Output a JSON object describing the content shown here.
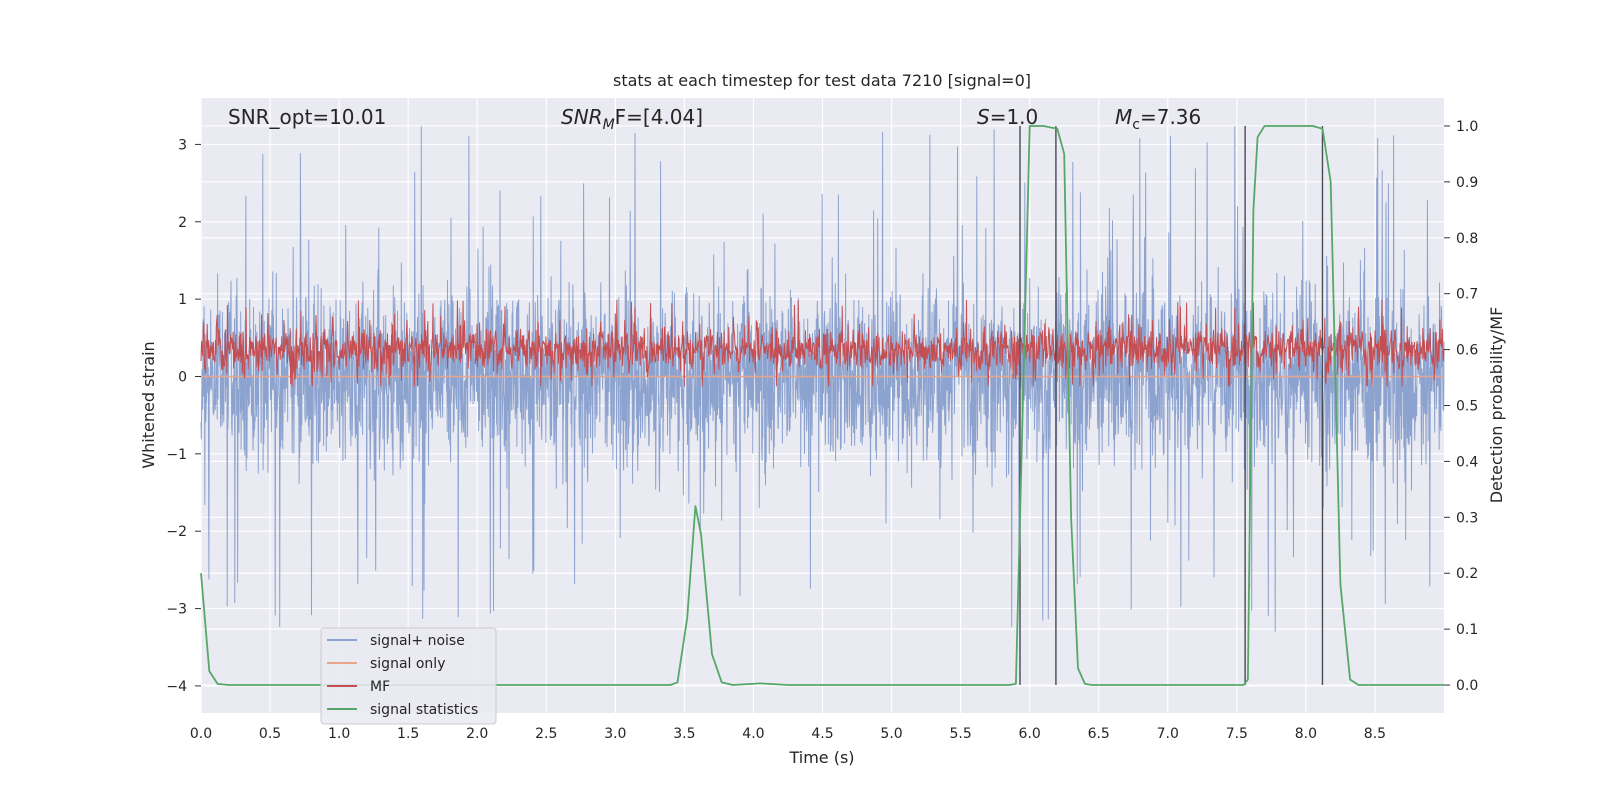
{
  "chart_data": {
    "type": "line",
    "title": "stats at each timestep for test data 7210 [signal=0]",
    "xlabel": "Time (s)",
    "ylabel_left": "Whitened strain",
    "ylabel_right": "Detection probability/MF",
    "xlim": [
      0.0,
      9.0
    ],
    "ylim_left": [
      -4.35,
      3.6
    ],
    "ylim_right": [
      -0.05,
      1.05
    ],
    "x_ticks": [
      0.0,
      0.5,
      1.0,
      1.5,
      2.0,
      2.5,
      3.0,
      3.5,
      4.0,
      4.5,
      5.0,
      5.5,
      6.0,
      6.5,
      7.0,
      7.5,
      8.0,
      8.5
    ],
    "x_tick_labels": [
      "0.0",
      "0.5",
      "1.0",
      "1.5",
      "2.0",
      "2.5",
      "3.0",
      "3.5",
      "4.0",
      "4.5",
      "5.0",
      "5.5",
      "6.0",
      "6.5",
      "7.0",
      "7.5",
      "8.0",
      "8.5"
    ],
    "y_left_ticks": [
      -4,
      -3,
      -2,
      -1,
      0,
      1,
      2,
      3
    ],
    "y_left_tick_labels": [
      "−4",
      "−3",
      "−2",
      "−1",
      "0",
      "1",
      "2",
      "3"
    ],
    "y_right_ticks": [
      0.0,
      0.1,
      0.2,
      0.3,
      0.4,
      0.5,
      0.6,
      0.7,
      0.8,
      0.9,
      1.0
    ],
    "y_right_tick_labels": [
      "0.0",
      "0.1",
      "0.2",
      "0.3",
      "0.4",
      "0.5",
      "0.6",
      "0.7",
      "0.8",
      "0.9",
      "1.0"
    ],
    "annotations": {
      "snr_opt": "SNR_opt=10.01",
      "snr_mf_main": "SNR",
      "snr_mf_sub": "M",
      "snr_mf_rest": "F=[4.04]",
      "s_main": "S",
      "s_rest": "=1.0",
      "mc_main": "M",
      "mc_sub": "c",
      "mc_rest": "=7.36"
    },
    "legend": {
      "position": "lower-left",
      "entries": [
        {
          "label": "signal+ noise",
          "color": "#8da3cf"
        },
        {
          "label": "signal only",
          "color": "#e8a58a"
        },
        {
          "label": "MF",
          "color": "#c44e52"
        },
        {
          "label": "signal statistics",
          "color": "#55a868"
        }
      ]
    },
    "series": [
      {
        "name": "signal+ noise",
        "axis": "left",
        "color": "#8da3cf",
        "description": "dense whitened noise, amplitude roughly -2.5 to 2.5 with spikes to about 3.3",
        "envelope": {
          "typical_low": -1.6,
          "typical_high": 1.6,
          "spike_low": -3.4,
          "spike_high": 3.3
        }
      },
      {
        "name": "signal only",
        "axis": "left",
        "color": "#e8a58a",
        "x": [
          0.0,
          9.0
        ],
        "y": [
          0.0,
          0.0
        ]
      },
      {
        "name": "MF",
        "axis": "right",
        "color": "#c44e52",
        "description": "matched-filter output oscillating around 0.6 between 0.53 and 0.69",
        "envelope": {
          "center": 0.6,
          "low": 0.535,
          "high": 0.69
        }
      },
      {
        "name": "signal statistics",
        "axis": "right",
        "color": "#55a868",
        "x": [
          0.0,
          0.06,
          0.12,
          0.2,
          3.4,
          3.45,
          3.52,
          3.58,
          3.62,
          3.7,
          3.77,
          3.85,
          4.05,
          4.25,
          5.85,
          5.9,
          5.95,
          6.0,
          6.05,
          6.1,
          6.2,
          6.25,
          6.3,
          6.35,
          6.4,
          6.45,
          7.55,
          7.58,
          7.62,
          7.65,
          7.7,
          7.75,
          8.05,
          8.12,
          8.18,
          8.25,
          8.32,
          8.38,
          9.0
        ],
        "y": [
          0.2,
          0.025,
          0.002,
          0.0,
          0.0,
          0.005,
          0.12,
          0.32,
          0.27,
          0.055,
          0.005,
          0.0,
          0.003,
          0.0,
          0.0,
          0.002,
          0.5,
          1.0,
          1.0,
          1.0,
          0.995,
          0.95,
          0.3,
          0.03,
          0.002,
          0.0,
          0.0,
          0.01,
          0.85,
          0.98,
          1.0,
          1.0,
          1.0,
          0.995,
          0.9,
          0.18,
          0.01,
          0.0,
          0.0
        ]
      }
    ],
    "vertical_markers": [
      {
        "x": 5.93,
        "y_top": 1.0,
        "y_bottom": 0.0
      },
      {
        "x": 6.19,
        "y_top": 1.0,
        "y_bottom": 0.0
      },
      {
        "x": 7.56,
        "y_top": 1.0,
        "y_bottom": 0.0
      },
      {
        "x": 8.12,
        "y_top": 1.0,
        "y_bottom": 0.0
      }
    ]
  }
}
